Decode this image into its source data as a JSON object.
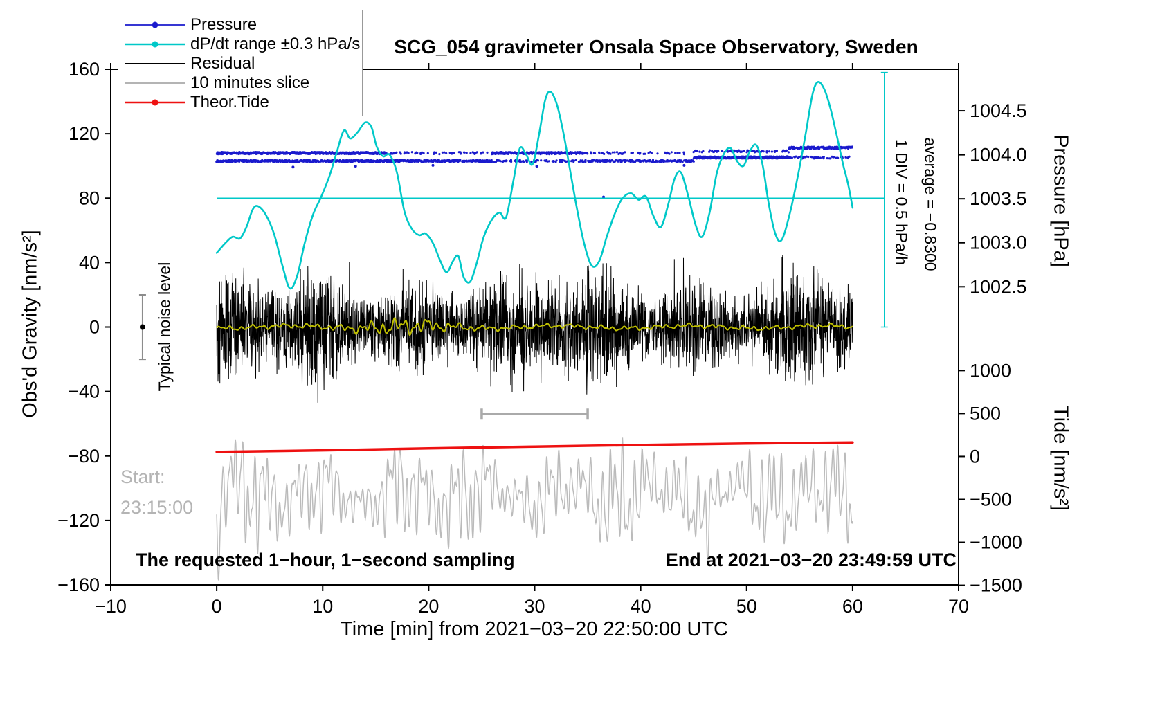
{
  "title": "SCG_054 gravimeter Onsala Space Observatory, Sweden",
  "legend": {
    "items": [
      {
        "label": "Pressure",
        "color": "#1a1acd",
        "marker": "line-dot",
        "lw": 1.8
      },
      {
        "label": "dP/dt range ±0.3 hPa/s",
        "color": "#00c8c8",
        "marker": "line-dot",
        "lw": 2.6
      },
      {
        "label": "Residual",
        "color": "#000000",
        "marker": "line",
        "lw": 2
      },
      {
        "label": "10 minutes slice",
        "color": "#b4b4b4",
        "marker": "line",
        "lw": 3.2
      },
      {
        "label": "Theor.Tide",
        "color": "#ee1111",
        "marker": "line-dot",
        "lw": 2.6
      }
    ]
  },
  "axes": {
    "x_label": "Time [min] from 2021−03−20 22:50:00 UTC",
    "y_left_label": "Obs'd Gravity [nm/s²]",
    "y_right_pressure_label": "Pressure [hPa]",
    "y_right_tide_label": "Tide [nm/s²]"
  },
  "annotations": {
    "div_note": "1 DIV = 0.5 hPa/h",
    "average_note": "average = −0.8300",
    "noise_label": "Typical noise level",
    "start_label": "Start:",
    "start_time": "23:15:00",
    "sampling_note": "The requested 1−hour, 1−second sampling",
    "end_note": "End at 2021−03−20 23:49:59 UTC"
  },
  "chart_data": {
    "type": "line",
    "title": "SCG_054 gravimeter Onsala Space Observatory, Sweden",
    "grid": false,
    "legend_position": "top-left",
    "x_axis": {
      "label": "Time [min] from 2021−03−20 22:50:00 UTC",
      "min": -10,
      "max": 70,
      "ticks": [
        -10,
        0,
        10,
        20,
        30,
        40,
        50,
        60,
        70
      ]
    },
    "y_gravity": {
      "label": "Obs'd Gravity [nm/s²]",
      "min": -160,
      "max": 160,
      "ticks": [
        -160,
        -120,
        -80,
        -40,
        0,
        40,
        80,
        120,
        160
      ]
    },
    "y_pressure": {
      "label": "Pressure [hPa]",
      "ticks": [
        1004.5,
        1004.0,
        1003.5,
        1003.0,
        1002.5
      ],
      "ref_value": 1004.5,
      "ref_gravity": 134.2,
      "gravity_per_hpa": 54.6
    },
    "y_tide": {
      "label": "Tide [nm/s²]",
      "ticks": [
        1000,
        500,
        0,
        -500,
        -1000,
        -1500
      ],
      "ref_value": 0,
      "ref_gravity": -80.3,
      "gravity_per_unit": 0.0533
    },
    "series": [
      {
        "key": "pressure",
        "name": "Pressure",
        "axis": "pressure",
        "style": "scatter",
        "color": "#1a1acd",
        "units": "hPa",
        "bands": [
          [
            0,
            16,
            1004.02,
            0.85
          ],
          [
            0,
            16.5,
            1003.93,
            0.85
          ],
          [
            16,
            26,
            1003.93,
            0.75
          ],
          [
            16,
            26,
            1004.02,
            0.2
          ],
          [
            26,
            34.5,
            1004.02,
            0.75
          ],
          [
            26,
            34.5,
            1003.93,
            0.35
          ],
          [
            34.5,
            45,
            1003.93,
            0.65
          ],
          [
            34.5,
            45,
            1004.02,
            0.18
          ],
          [
            45,
            54,
            1003.97,
            0.85
          ],
          [
            45,
            54,
            1004.04,
            0.3
          ],
          [
            54,
            60,
            1004.08,
            0.85
          ],
          [
            49,
            60,
            1003.97,
            0.3
          ]
        ],
        "outliers": [
          [
            7.2,
            1003.86
          ],
          [
            13.1,
            1003.87
          ],
          [
            20.4,
            1003.88
          ],
          [
            30.2,
            1003.87
          ],
          [
            36.5,
            1003.52
          ],
          [
            44.1,
            1003.88
          ]
        ]
      },
      {
        "key": "dpdt",
        "name": "dP/dt range ±0.3 hPa/s",
        "axis": "gravity",
        "style": "smooth-line",
        "color": "#00c8c8",
        "width": 2.6,
        "reference_line_gravity": 80,
        "div_bar": {
          "x": 63,
          "g0": 0,
          "g1": 158
        },
        "points": [
          [
            0,
            46
          ],
          [
            0.8,
            52
          ],
          [
            1.5,
            56
          ],
          [
            2.2,
            55
          ],
          [
            2.8,
            62
          ],
          [
            3.4,
            73
          ],
          [
            3.9,
            75
          ],
          [
            4.6,
            70
          ],
          [
            5.4,
            58
          ],
          [
            6.2,
            38
          ],
          [
            6.9,
            24
          ],
          [
            7.6,
            32
          ],
          [
            8.3,
            52
          ],
          [
            9.1,
            70
          ],
          [
            9.8,
            80
          ],
          [
            10.6,
            93
          ],
          [
            11.3,
            108
          ],
          [
            12,
            122
          ],
          [
            12.6,
            117
          ],
          [
            13.3,
            121
          ],
          [
            14,
            127
          ],
          [
            14.6,
            124
          ],
          [
            15.1,
            112
          ],
          [
            15.7,
            106
          ],
          [
            16.3,
            107
          ],
          [
            17,
            96
          ],
          [
            17.7,
            72
          ],
          [
            18.4,
            61
          ],
          [
            19.1,
            57
          ],
          [
            19.7,
            58
          ],
          [
            20.4,
            52
          ],
          [
            21.1,
            41
          ],
          [
            21.7,
            34
          ],
          [
            22.3,
            41
          ],
          [
            22.8,
            44
          ],
          [
            23.3,
            31
          ],
          [
            23.9,
            28
          ],
          [
            24.5,
            39
          ],
          [
            25.2,
            56
          ],
          [
            26,
            67
          ],
          [
            26.7,
            71
          ],
          [
            27.3,
            68
          ],
          [
            28,
            91
          ],
          [
            28.6,
            111
          ],
          [
            29.2,
            107
          ],
          [
            29.8,
            101
          ],
          [
            30.4,
            119
          ],
          [
            31,
            141
          ],
          [
            31.5,
            146
          ],
          [
            32.1,
            138
          ],
          [
            32.7,
            121
          ],
          [
            33.3,
            99
          ],
          [
            34,
            73
          ],
          [
            34.7,
            51
          ],
          [
            35.4,
            38
          ],
          [
            36.1,
            41
          ],
          [
            36.8,
            56
          ],
          [
            37.6,
            71
          ],
          [
            38.3,
            80
          ],
          [
            39.1,
            83
          ],
          [
            39.8,
            79
          ],
          [
            40.5,
            81
          ],
          [
            41.2,
            69
          ],
          [
            41.9,
            62
          ],
          [
            42.6,
            76
          ],
          [
            43.2,
            92
          ],
          [
            43.8,
            96
          ],
          [
            44.5,
            81
          ],
          [
            45.2,
            63
          ],
          [
            45.8,
            56
          ],
          [
            46.5,
            71
          ],
          [
            47.2,
            96
          ],
          [
            47.9,
            108
          ],
          [
            48.5,
            111
          ],
          [
            49.1,
            103
          ],
          [
            49.7,
            100
          ],
          [
            50.3,
            109
          ],
          [
            50.9,
            113
          ],
          [
            51.5,
            101
          ],
          [
            52.1,
            76
          ],
          [
            52.7,
            58
          ],
          [
            53.3,
            54
          ],
          [
            54.1,
            71
          ],
          [
            54.9,
            96
          ],
          [
            55.6,
            121
          ],
          [
            56.2,
            144
          ],
          [
            56.7,
            152
          ],
          [
            57.3,
            148
          ],
          [
            57.9,
            136
          ],
          [
            58.5,
            119
          ],
          [
            59.1,
            101
          ],
          [
            59.6,
            88
          ],
          [
            60,
            74
          ]
        ]
      },
      {
        "key": "residual",
        "name": "Residual",
        "axis": "gravity",
        "style": "noise",
        "color": "#000000",
        "width": 1,
        "mean": 0,
        "sigma": 13,
        "peak": 60,
        "t0": 0,
        "t1": 60,
        "seed": 42,
        "n": 3000
      },
      {
        "key": "smoothed",
        "name": "Residual lowpass",
        "axis": "gravity",
        "style": "smooth-noise",
        "color": "#bfbf00",
        "width": 2,
        "t0": 0,
        "t1": 60,
        "seed": 7,
        "n": 900
      },
      {
        "key": "slice",
        "name": "10 minutes slice",
        "axis": "gravity",
        "style": "slice-noise",
        "color": "#bbbbbb",
        "width": 1.5,
        "mean": -104,
        "amplitude": 26,
        "t0": 0,
        "t1": 60,
        "seed": 99,
        "n": 1600,
        "scale_bar": {
          "t0": 25,
          "t1": 35,
          "g": -54
        }
      },
      {
        "key": "tide",
        "name": "Theor.Tide",
        "axis": "gravity",
        "style": "line",
        "color": "#ee1111",
        "width": 3.5,
        "points": [
          [
            0,
            -77.5
          ],
          [
            10,
            -76.5
          ],
          [
            20,
            -75.3
          ],
          [
            30,
            -74.2
          ],
          [
            40,
            -73.2
          ],
          [
            50,
            -72.3
          ],
          [
            60,
            -71.6
          ]
        ],
        "tide_values_nms2": [
          53,
          71,
          94,
          114,
          133,
          150,
          163
        ]
      },
      {
        "key": "noise_level",
        "name": "Typical noise level",
        "axis": "gravity",
        "style": "errorbar",
        "x": -7,
        "center": 0,
        "half_range": 20,
        "color": "#8c8c8c",
        "dot_color": "#000000"
      }
    ]
  }
}
